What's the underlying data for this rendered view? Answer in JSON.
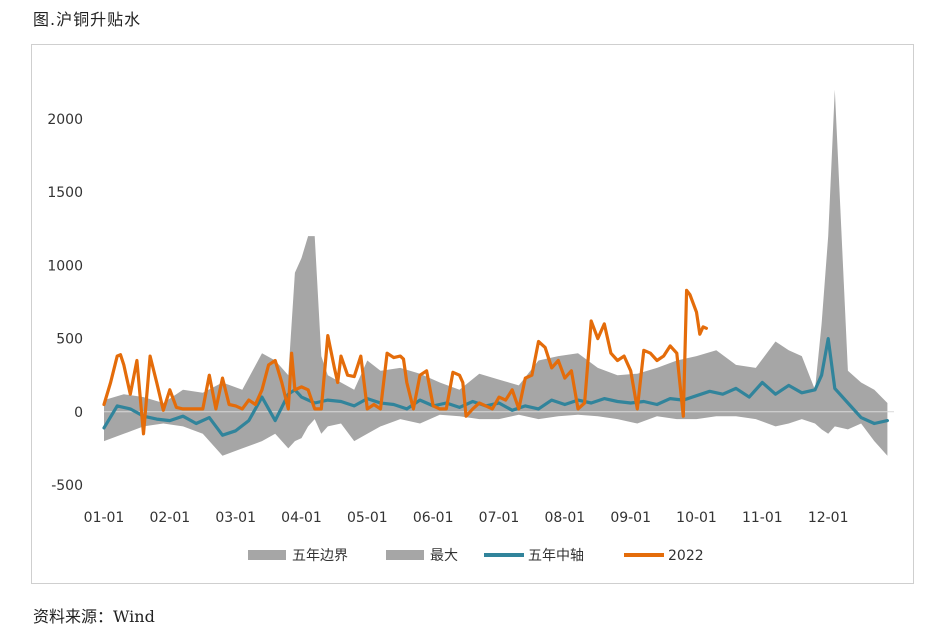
{
  "title": "图.沪铜升贴水",
  "source": "资料来源：Wind",
  "chart_data": {
    "type": "line",
    "title": "图.沪铜升贴水",
    "xlabel": "",
    "ylabel": "",
    "ylim": [
      -500,
      2300
    ],
    "yticks": [
      -500,
      0,
      500,
      1000,
      1500,
      2000
    ],
    "xticks": [
      "01-01",
      "02-01",
      "03-01",
      "04-01",
      "05-01",
      "06-01",
      "07-01",
      "08-01",
      "09-01",
      "10-01",
      "11-01",
      "12-01"
    ],
    "x_domain": [
      0,
      12
    ],
    "grid": false,
    "legend_position": "bottom",
    "legend": [
      "五年边界",
      "最大",
      "五年中轴",
      "2022"
    ],
    "colors": {
      "band": "#a6a6a6",
      "median": "#31849b",
      "current": "#e46c0a"
    },
    "series": [
      {
        "name": "五年边界",
        "type": "area-band",
        "x": [
          0,
          0.3,
          0.6,
          0.9,
          1.2,
          1.5,
          1.8,
          2.1,
          2.4,
          2.6,
          2.8,
          2.9,
          3.0,
          3.1,
          3.2,
          3.3,
          3.4,
          3.6,
          3.8,
          4.0,
          4.2,
          4.5,
          4.8,
          5.1,
          5.4,
          5.7,
          6.0,
          6.3,
          6.6,
          6.9,
          7.2,
          7.5,
          7.8,
          8.1,
          8.4,
          8.7,
          9.0,
          9.3,
          9.6,
          9.9,
          10.2,
          10.4,
          10.6,
          10.8,
          10.9,
          11.0,
          11.1,
          11.3,
          11.5,
          11.7,
          11.9
        ],
        "upper": [
          80,
          120,
          100,
          60,
          150,
          130,
          200,
          150,
          400,
          350,
          250,
          950,
          1050,
          1200,
          1200,
          380,
          250,
          200,
          150,
          350,
          280,
          300,
          260,
          200,
          150,
          260,
          220,
          180,
          350,
          380,
          400,
          300,
          250,
          260,
          300,
          350,
          380,
          420,
          320,
          300,
          480,
          420,
          380,
          150,
          600,
          1200,
          2200,
          280,
          200,
          150,
          60
        ],
        "lower": [
          -200,
          -150,
          -100,
          -80,
          -100,
          -150,
          -300,
          -250,
          -200,
          -150,
          -250,
          -200,
          -180,
          -100,
          -50,
          -150,
          -100,
          -80,
          -200,
          -150,
          -100,
          -50,
          -80,
          -20,
          -30,
          -50,
          -50,
          -20,
          -50,
          -30,
          -20,
          -30,
          -50,
          -80,
          -30,
          -50,
          -50,
          -30,
          -30,
          -50,
          -100,
          -80,
          -50,
          -80,
          -120,
          -150,
          -100,
          -120,
          -80,
          -200,
          -300
        ]
      },
      {
        "name": "五年中轴",
        "x": [
          0,
          0.2,
          0.4,
          0.6,
          0.8,
          1.0,
          1.2,
          1.4,
          1.6,
          1.8,
          2.0,
          2.2,
          2.4,
          2.6,
          2.8,
          2.9,
          3.0,
          3.2,
          3.4,
          3.6,
          3.8,
          4.0,
          4.2,
          4.4,
          4.6,
          4.8,
          5.0,
          5.2,
          5.4,
          5.6,
          5.8,
          6.0,
          6.2,
          6.4,
          6.6,
          6.8,
          7.0,
          7.2,
          7.4,
          7.6,
          7.8,
          8.0,
          8.2,
          8.4,
          8.6,
          8.8,
          9.0,
          9.2,
          9.4,
          9.6,
          9.8,
          10.0,
          10.2,
          10.4,
          10.6,
          10.8,
          10.9,
          11.0,
          11.1,
          11.3,
          11.5,
          11.7,
          11.9
        ],
        "values": [
          -110,
          40,
          20,
          -30,
          -50,
          -60,
          -30,
          -80,
          -40,
          -160,
          -130,
          -60,
          100,
          -60,
          120,
          150,
          100,
          60,
          80,
          70,
          40,
          90,
          60,
          50,
          20,
          80,
          40,
          60,
          30,
          70,
          40,
          60,
          10,
          40,
          20,
          80,
          50,
          80,
          60,
          90,
          70,
          60,
          70,
          50,
          90,
          80,
          110,
          140,
          120,
          160,
          100,
          200,
          120,
          180,
          130,
          150,
          250,
          500,
          160,
          60,
          -40,
          -80,
          -60
        ]
      },
      {
        "name": "2022",
        "x": [
          0,
          0.1,
          0.2,
          0.25,
          0.3,
          0.4,
          0.5,
          0.55,
          0.6,
          0.7,
          0.8,
          0.9,
          1.0,
          1.1,
          1.2,
          1.3,
          1.5,
          1.6,
          1.7,
          1.8,
          1.9,
          2.0,
          2.1,
          2.2,
          2.3,
          2.4,
          2.5,
          2.6,
          2.7,
          2.8,
          2.85,
          2.9,
          3.0,
          3.1,
          3.2,
          3.3,
          3.4,
          3.5,
          3.55,
          3.6,
          3.7,
          3.8,
          3.9,
          4.0,
          4.1,
          4.2,
          4.3,
          4.4,
          4.5,
          4.55,
          4.6,
          4.7,
          4.8,
          4.9,
          5.0,
          5.1,
          5.2,
          5.3,
          5.4,
          5.45,
          5.5,
          5.6,
          5.7,
          5.8,
          5.9,
          6.0,
          6.1,
          6.2,
          6.3,
          6.4,
          6.5,
          6.6,
          6.7,
          6.8,
          6.9,
          7.0,
          7.1,
          7.2,
          7.3,
          7.4,
          7.5,
          7.6,
          7.7,
          7.8,
          7.9,
          8.0,
          8.1,
          8.2,
          8.3,
          8.4,
          8.5,
          8.6,
          8.7,
          8.8,
          8.85,
          8.9,
          9.0,
          9.05,
          9.1,
          9.15
        ],
        "values": [
          50,
          200,
          380,
          390,
          320,
          120,
          350,
          100,
          -150,
          380,
          200,
          10,
          150,
          30,
          20,
          20,
          20,
          250,
          20,
          230,
          50,
          40,
          20,
          80,
          50,
          150,
          320,
          350,
          200,
          20,
          400,
          150,
          170,
          150,
          20,
          20,
          520,
          300,
          200,
          380,
          250,
          240,
          380,
          20,
          50,
          20,
          400,
          370,
          380,
          360,
          200,
          20,
          250,
          280,
          40,
          20,
          20,
          270,
          250,
          200,
          -30,
          20,
          60,
          40,
          20,
          100,
          80,
          150,
          20,
          230,
          250,
          480,
          440,
          300,
          350,
          230,
          280,
          20,
          60,
          620,
          500,
          600,
          400,
          350,
          380,
          280,
          20,
          420,
          400,
          350,
          380,
          450,
          400,
          -30,
          830,
          800,
          680,
          530,
          580,
          570
        ]
      }
    ]
  }
}
